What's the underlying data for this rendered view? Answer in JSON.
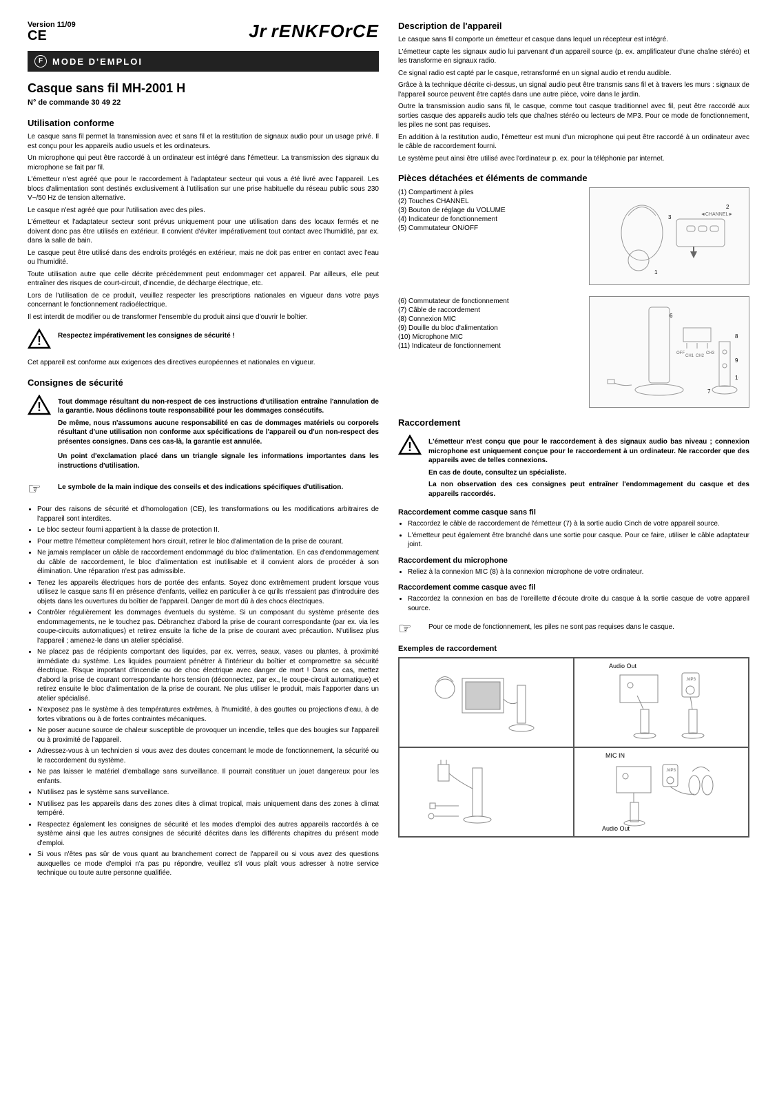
{
  "header": {
    "version": "Version 11/09",
    "ce": "CE",
    "brand_prefix": "Jr",
    "brand": "rENKFOrCE"
  },
  "bar": {
    "letter": "F",
    "text": "MODE D'EMPLOI"
  },
  "title": "Casque sans fil MH-2001 H",
  "order": "N° de commande 30 49 22",
  "left": {
    "h_usage": "Utilisation conforme",
    "usage_p1": "Le casque sans fil permet la transmission avec et sans fil et la restitution de signaux audio pour un usage privé. Il est conçu pour les appareils audio usuels et les ordinateurs.",
    "usage_p2": "Un microphone qui peut être raccordé à un ordinateur est intégré dans l'émetteur. La transmission des signaux du microphone se fait par fil.",
    "usage_p3": "L'émetteur n'est agréé que pour le raccordement à l'adaptateur secteur qui vous a été livré avec l'appareil. Les blocs d'alimentation sont destinés exclusivement à l'utilisation sur une prise habituelle du réseau public sous 230 V~/50 Hz de tension alternative.",
    "usage_p4": "Le casque n'est agréé que pour l'utilisation avec des piles.",
    "usage_p5": "L'émetteur et l'adaptateur secteur sont prévus uniquement pour une utilisation dans des locaux fermés et ne doivent donc pas être utilisés en extérieur. Il convient d'éviter impérativement tout contact avec l'humidité, par ex. dans la salle de bain.",
    "usage_p6": "Le casque peut être utilisé dans des endroits protégés en extérieur, mais ne doit pas entrer en contact avec l'eau ou l'humidité.",
    "usage_p7": "Toute utilisation autre que celle décrite précédemment peut endommager cet appareil. Par ailleurs, elle peut entraîner des risques de court-circuit, d'incendie, de décharge électrique, etc.",
    "usage_p8": "Lors de l'utilisation de ce produit, veuillez respecter les prescriptions nationales en vigueur dans votre pays concernant le fonctionnement radioélectrique.",
    "usage_p9": "Il est interdit de modifier ou de transformer l'ensemble du produit ainsi que d'ouvrir le boîtier.",
    "warn_respect": "Respectez impérativement les consignes de sécurité !",
    "conformity": "Cet appareil est conforme aux exigences des directives européennes et nationales en vigueur.",
    "h_safety": "Consignes de sécurité",
    "safety_warn1": "Tout dommage résultant du non-respect de ces instructions d'utilisation entraîne l'annulation de la garantie. Nous déclinons toute responsabilité pour les dommages consécutifs.",
    "safety_warn2": "De même, nous n'assumons aucune responsabilité en cas de dommages matériels ou corporels résultant d'une utilisation non conforme aux spécifications de l'appareil ou d'un non-respect des présentes consignes. Dans ces cas-là, la garantie est annulée.",
    "safety_warn3": "Un point d'exclamation placé dans un triangle signale les informations importantes dans les instructions d'utilisation.",
    "hand_text": "Le symbole de la main indique des conseils et des indications spécifiques d'utilisation.",
    "bullets": [
      "Pour des raisons de sécurité et d'homologation (CE), les transformations ou les modifications arbitraires de l'appareil sont interdites.",
      "Le bloc secteur fourni appartient à la classe de protection II.",
      "Pour mettre l'émetteur complètement hors circuit, retirer le bloc d'alimentation de la prise de courant.",
      "Ne jamais remplacer un câble de raccordement endommagé du bloc d'alimentation. En cas d'endommagement du câble de raccordement, le bloc d'alimentation est inutilisable et il convient alors de procéder à son élimination. Une réparation n'est pas admissible.",
      "Tenez les appareils électriques hors de portée des enfants. Soyez donc extrêmement prudent lorsque vous utilisez le casque sans fil en présence d'enfants, veillez en particulier à ce qu'ils n'essaient pas d'introduire des objets dans les ouvertures du boîtier de l'appareil. Danger de mort dû à des chocs électriques.",
      "Contrôler régulièrement les dommages éventuels du système. Si un composant du système présente des endommagements, ne le touchez pas. Débranchez d'abord la prise de courant correspondante (par ex. via les coupe-circuits automatiques) et retirez ensuite la fiche de la prise de courant avec précaution. N'utilisez plus l'appareil ; amenez-le dans un atelier spécialisé.",
      "Ne placez pas de récipients comportant des liquides, par ex. verres, seaux, vases ou plantes, à proximité immédiate du système. Les liquides pourraient pénétrer à l'intérieur du boîtier et compromettre sa sécurité électrique. Risque important d'incendie ou de choc électrique avec danger de mort ! Dans ce cas, mettez d'abord la prise de courant correspondante hors tension (déconnectez, par ex., le coupe-circuit automatique) et retirez ensuite le bloc d'alimentation de la prise de courant. Ne plus utiliser le produit, mais l'apporter dans un atelier spécialisé.",
      "N'exposez pas le système à des températures extrêmes, à l'humidité, à des gouttes ou projections d'eau, à de fortes vibrations ou à de fortes contraintes mécaniques.",
      "Ne poser aucune source de chaleur susceptible de provoquer un incendie, telles que des bougies sur l'appareil ou à proximité de l'appareil.",
      "Adressez-vous à un technicien si vous avez des doutes concernant le mode de fonctionnement, la sécurité ou le raccordement du système.",
      "Ne pas laisser le matériel d'emballage sans surveillance. Il pourrait constituer un jouet dangereux pour les enfants.",
      "N'utilisez pas le système sans surveillance.",
      "N'utilisez pas les appareils dans des zones dites à climat tropical, mais uniquement dans des zones à climat tempéré.",
      "Respectez également les consignes de sécurité et les modes d'emploi des autres appareils raccordés à ce système ainsi que les autres consignes de sécurité décrites dans les différents chapitres du présent mode d'emploi.",
      "Si vous n'êtes pas sûr de vous quant au branchement correct de l'appareil ou si vous avez des questions auxquelles ce mode d'emploi n'a pas pu répondre, veuillez s'il vous plaît vous adresser à notre service technique ou toute autre personne qualifiée."
    ]
  },
  "right": {
    "h_desc": "Description de l'appareil",
    "desc_p1": "Le casque sans fil comporte un émetteur et casque dans lequel un récepteur est intégré.",
    "desc_p2": "L'émetteur capte les signaux audio lui parvenant d'un appareil source (p. ex. amplificateur d'une chaîne stéréo) et les transforme en signaux radio.",
    "desc_p3": "Ce signal radio est capté par le casque, retransformé en un signal audio et rendu audible.",
    "desc_p4": "Grâce à la technique décrite ci-dessus, un signal audio peut être transmis sans fil et à travers les murs : signaux de l'appareil source peuvent être captés dans une autre pièce, voire dans le jardin.",
    "desc_p5": "Outre la transmission audio sans fil, le casque, comme tout casque traditionnel avec fil, peut être raccordé aux sorties casque des appareils audio tels que chaînes stéréo ou lecteurs de MP3. Pour ce mode de fonctionnement, les piles ne sont pas requises.",
    "desc_p6": "En addition à la restitution audio, l'émetteur est muni d'un microphone qui peut être raccordé à un ordinateur avec le câble de raccordement fourni.",
    "desc_p7": "Le système peut ainsi être utilisé avec l'ordinateur p. ex. pour la téléphonie par internet.",
    "h_parts": "Pièces détachées et éléments de commande",
    "parts1": [
      "(1)  Compartiment à piles",
      "(2)  Touches CHANNEL",
      "(3)  Bouton de réglage du VOLUME",
      "(4)  Indicateur de fonctionnement",
      "(5)  Commutateur ON/OFF"
    ],
    "parts2": [
      "(6)  Commutateur de fonctionnement",
      "(7)  Câble de raccordement",
      "(8)  Connexion MIC",
      "(9)  Douille du bloc d'alimentation",
      "(10) Microphone MIC",
      "(11) Indicateur de fonctionnement"
    ],
    "h_racc": "Raccordement",
    "racc_warn1": "L'émetteur n'est conçu que pour le raccordement à des signaux audio bas niveau ; connexion microphone est uniquement conçue pour le raccordement à un ordinateur. Ne raccorder que des appareils avec de telles connexions.",
    "racc_warn2": "En cas de doute, consultez un spécialiste.",
    "racc_warn3": "La non observation des ces consignes peut entraîner l'endommagement du casque et des appareils raccordés.",
    "h_racc_wl": "Raccordement comme casque sans fil",
    "racc_wl_b1": "Raccordez le câble de raccordement de l'émetteur (7) à la sortie audio Cinch de votre appareil source.",
    "racc_wl_b2": "L'émetteur peut également être branché dans une sortie pour casque. Pour ce faire, utiliser le câble adaptateur joint.",
    "h_racc_mic": "Raccordement du microphone",
    "racc_mic_b1": "Reliez à la connexion MIC (8) à la connexion microphone de votre ordinateur.",
    "h_racc_wired": "Raccordement comme casque avec fil",
    "racc_wired_b1": "Raccordez la connexion en bas de l'oreillette d'écoute droite du casque à la sortie casque de votre appareil source.",
    "hand_note": "Pour ce mode de fonctionnement, les piles ne sont pas requises dans le casque.",
    "h_examples": "Exemples de raccordement",
    "ex_label1": "Audio Out",
    "ex_label2": ".MP3",
    "ex_label3": "MIC IN",
    "ex_label4": ".MP3",
    "ex_label5": "Audio Out"
  }
}
